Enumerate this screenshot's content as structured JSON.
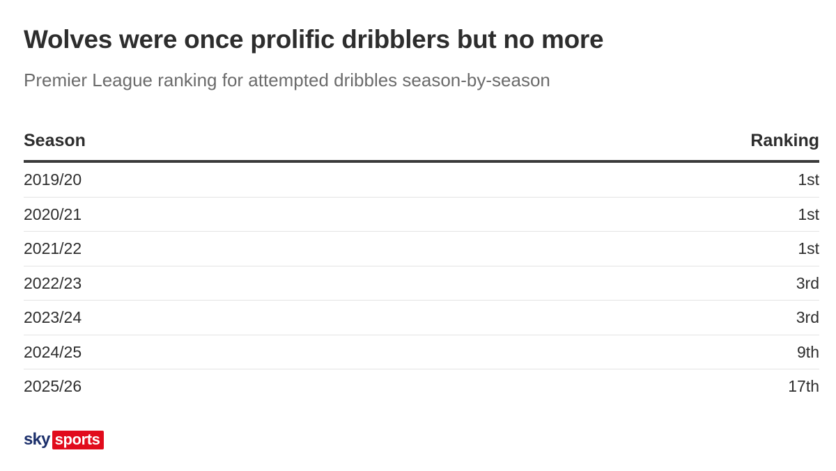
{
  "title": "Wolves were once prolific dribblers but no more",
  "subtitle": "Premier League ranking for attempted dribbles season-by-season",
  "chart_data": {
    "type": "table",
    "columns": [
      "Season",
      "Ranking"
    ],
    "rows": [
      {
        "season": "2019/20",
        "ranking": "1st"
      },
      {
        "season": "2020/21",
        "ranking": "1st"
      },
      {
        "season": "2021/22",
        "ranking": "1st"
      },
      {
        "season": "2022/23",
        "ranking": "3rd"
      },
      {
        "season": "2023/24",
        "ranking": "3rd"
      },
      {
        "season": "2024/25",
        "ranking": "9th"
      },
      {
        "season": "2025/26",
        "ranking": "17th"
      }
    ]
  },
  "logo": {
    "sky": "sky",
    "sports": "sports",
    "sports_color": "#e10b1c",
    "sky_color": "#1b2f6b"
  }
}
